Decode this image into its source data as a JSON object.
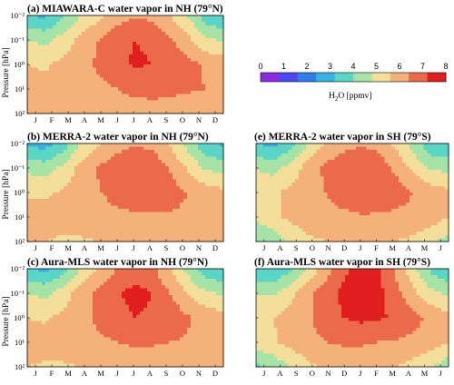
{
  "colorbar": {
    "label_main": "H",
    "label_sub": "2",
    "label_rest": "O [ppmv]",
    "ticks": [
      "0",
      "1",
      "2",
      "3",
      "4",
      "5",
      "6",
      "7",
      "8"
    ],
    "range": [
      0,
      8
    ],
    "colors": [
      "#8a2be2",
      "#4a49f0",
      "#2f7de8",
      "#36b3e6",
      "#5ad6c6",
      "#a6e3a6",
      "#f3df9a",
      "#f4b27a",
      "#ec6a4c",
      "#e01e1e"
    ]
  },
  "chart_data": [
    {
      "id": "a",
      "type": "heatmap",
      "title": "(a) MIAWARA-C water vapor in NH (79°N)",
      "ylabel": "Pressure [hPa]",
      "x": [
        "J",
        "F",
        "M",
        "A",
        "M",
        "J",
        "J",
        "A",
        "S",
        "O",
        "N",
        "D"
      ],
      "y_ticks": [
        "10⁻²",
        "10⁻¹",
        "10⁰",
        "10¹",
        "10²"
      ],
      "y_log_pressure_hpa": [
        0.01,
        0.1,
        1,
        10,
        100
      ],
      "z_ppmv": [
        [
          3.2,
          3.0,
          3.8,
          4.8,
          5.4,
          6.0,
          6.3,
          6.2,
          5.6,
          4.8,
          3.5,
          3.2
        ],
        [
          4.8,
          4.6,
          5.2,
          5.8,
          6.4,
          6.9,
          7.2,
          7.1,
          6.5,
          5.8,
          4.9,
          4.7
        ],
        [
          5.6,
          5.5,
          5.8,
          6.0,
          6.6,
          7.0,
          7.3,
          7.2,
          7.0,
          6.7,
          6.3,
          6.1
        ],
        [
          5.9,
          5.8,
          6.0,
          6.0,
          6.1,
          6.4,
          6.6,
          6.7,
          6.6,
          6.5,
          6.4,
          6.2
        ],
        [
          5.8,
          5.6,
          5.6,
          5.7,
          5.8,
          5.9,
          6.0,
          6.0,
          6.0,
          5.9,
          5.8,
          5.8
        ]
      ]
    },
    {
      "id": "b",
      "type": "heatmap",
      "title": "(b) MERRA-2 water vapor in NH (79°N)",
      "ylabel": "Pressure [hPa]",
      "x": [
        "J",
        "F",
        "M",
        "A",
        "M",
        "J",
        "J",
        "A",
        "S",
        "O",
        "N",
        "D"
      ],
      "y_ticks": [
        "10⁻²",
        "10⁻¹",
        "10⁰",
        "10¹",
        "10²"
      ],
      "y_log_pressure_hpa": [
        0.01,
        0.1,
        1,
        10,
        100
      ],
      "z_ppmv": [
        [
          3.0,
          2.8,
          3.5,
          4.8,
          5.5,
          6.0,
          6.3,
          6.2,
          5.5,
          4.5,
          3.4,
          3.0
        ],
        [
          4.6,
          4.4,
          5.0,
          5.9,
          6.5,
          6.9,
          7.1,
          7.0,
          6.3,
          5.5,
          4.7,
          4.5
        ],
        [
          5.5,
          5.5,
          5.7,
          5.9,
          6.3,
          6.8,
          7.1,
          7.0,
          6.8,
          6.4,
          6.0,
          5.8
        ],
        [
          5.8,
          5.8,
          5.9,
          6.0,
          6.0,
          6.1,
          6.2,
          6.3,
          6.3,
          6.2,
          6.1,
          5.9
        ],
        [
          5.7,
          5.6,
          5.5,
          5.5,
          5.6,
          5.7,
          5.8,
          5.8,
          5.8,
          5.8,
          5.7,
          5.7
        ]
      ]
    },
    {
      "id": "c",
      "type": "heatmap",
      "title": "(c) Aura-MLS water vapor in NH (79°N)",
      "ylabel": "Pressure [hPa]",
      "x": [
        "J",
        "F",
        "M",
        "A",
        "M",
        "J",
        "J",
        "A",
        "S",
        "O",
        "N",
        "D"
      ],
      "y_ticks": [
        "10⁻²",
        "10⁻¹",
        "10⁰",
        "10¹",
        "10²"
      ],
      "y_log_pressure_hpa": [
        0.01,
        0.1,
        1,
        10,
        100
      ],
      "z_ppmv": [
        [
          3.2,
          3.0,
          3.6,
          4.8,
          5.6,
          6.4,
          6.9,
          6.6,
          5.6,
          4.5,
          3.5,
          3.2
        ],
        [
          4.8,
          4.6,
          5.2,
          6.0,
          6.6,
          7.1,
          7.4,
          7.2,
          6.4,
          5.6,
          4.9,
          4.7
        ],
        [
          5.6,
          5.5,
          5.8,
          6.1,
          6.6,
          7.0,
          7.2,
          7.1,
          6.9,
          6.5,
          6.1,
          5.9
        ],
        [
          5.9,
          5.9,
          6.0,
          6.1,
          6.2,
          6.4,
          6.5,
          6.5,
          6.4,
          6.3,
          6.2,
          6.0
        ],
        [
          5.6,
          5.5,
          5.5,
          5.6,
          5.7,
          5.8,
          5.9,
          5.9,
          5.9,
          5.8,
          5.7,
          5.6
        ]
      ]
    },
    {
      "id": "e",
      "type": "heatmap",
      "title": "(e) MERRA-2 water vapor in SH (79°S)",
      "x": [
        "J",
        "A",
        "S",
        "O",
        "N",
        "D",
        "J",
        "F",
        "M",
        "A",
        "M",
        "J"
      ],
      "y_log_pressure_hpa": [
        0.01,
        0.1,
        1,
        10,
        100
      ],
      "z_ppmv": [
        [
          3.2,
          3.0,
          3.6,
          4.8,
          5.6,
          6.1,
          6.3,
          6.1,
          5.4,
          4.4,
          3.4,
          3.1
        ],
        [
          4.7,
          4.5,
          5.1,
          6.0,
          6.6,
          7.0,
          7.1,
          6.9,
          6.2,
          5.4,
          4.7,
          4.6
        ],
        [
          5.6,
          5.5,
          5.8,
          6.0,
          6.4,
          6.8,
          7.1,
          7.0,
          6.8,
          6.4,
          6.0,
          5.8
        ],
        [
          5.0,
          5.4,
          5.8,
          6.1,
          6.2,
          6.2,
          6.3,
          6.3,
          6.2,
          6.1,
          6.0,
          5.6
        ],
        [
          4.0,
          4.3,
          4.9,
          5.4,
          5.6,
          5.7,
          5.8,
          5.7,
          5.6,
          5.4,
          5.0,
          4.4
        ]
      ]
    },
    {
      "id": "f",
      "type": "heatmap",
      "title": "(f) Aura-MLS water vapor in SH (79°S)",
      "x": [
        "J",
        "A",
        "S",
        "O",
        "N",
        "D",
        "J",
        "F",
        "M",
        "A",
        "M",
        "J"
      ],
      "y_log_pressure_hpa": [
        0.01,
        0.1,
        1,
        10,
        100
      ],
      "z_ppmv": [
        [
          3.3,
          3.1,
          3.8,
          5.0,
          6.0,
          7.0,
          7.5,
          7.3,
          6.2,
          5.0,
          3.8,
          3.2
        ],
        [
          4.8,
          4.7,
          5.4,
          6.2,
          6.9,
          7.4,
          7.6,
          7.4,
          6.7,
          5.8,
          5.0,
          4.7
        ],
        [
          5.6,
          5.6,
          5.9,
          6.3,
          6.8,
          7.2,
          7.4,
          7.3,
          7.1,
          6.7,
          6.2,
          5.8
        ],
        [
          5.2,
          5.5,
          5.9,
          6.2,
          6.4,
          6.5,
          6.5,
          6.4,
          6.3,
          6.2,
          6.0,
          5.6
        ],
        [
          3.8,
          4.2,
          4.8,
          5.4,
          5.7,
          5.8,
          5.8,
          5.7,
          5.6,
          5.3,
          4.9,
          4.2
        ]
      ]
    }
  ]
}
